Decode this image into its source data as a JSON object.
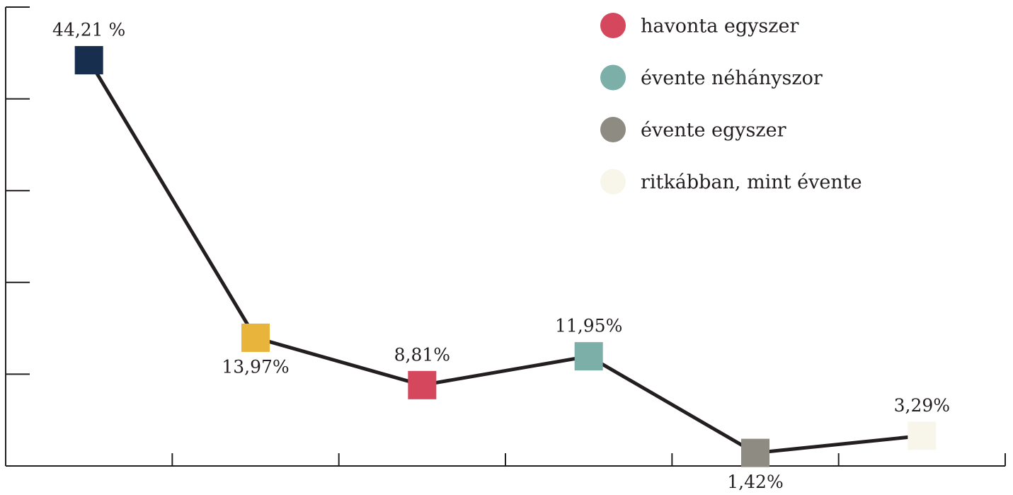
{
  "chart_data": {
    "type": "line",
    "categories": [
      null,
      null,
      null,
      null,
      null,
      null
    ],
    "series": [
      {
        "values": [
          44.21,
          13.97,
          8.81,
          11.95,
          1.42,
          3.29
        ],
        "value_labels": [
          "44,21 %",
          "13,97%",
          "8,81%",
          "11,95%",
          "1,42%",
          "3,29%"
        ],
        "value_label_positions": [
          "above",
          "below",
          "above",
          "above",
          "below",
          "above"
        ],
        "colors": [
          "#172e4e",
          "#e9b43b",
          "#d4475c",
          "#7cafa8",
          "#8e8c82",
          "#f8f6ea"
        ],
        "line_color": "#231f20"
      }
    ],
    "legend": [
      {
        "name": "havonta egyszer",
        "color": "#d4475c"
      },
      {
        "name": "évente néhányszor",
        "color": "#7cafa8"
      },
      {
        "name": "évente egyszer",
        "color": "#8e8c82"
      },
      {
        "name": "ritkábban, mint évente",
        "color": "#f8f6ea"
      }
    ],
    "ylim": [
      0,
      50
    ],
    "yticks": [
      0,
      10,
      20,
      30,
      40,
      50
    ]
  }
}
